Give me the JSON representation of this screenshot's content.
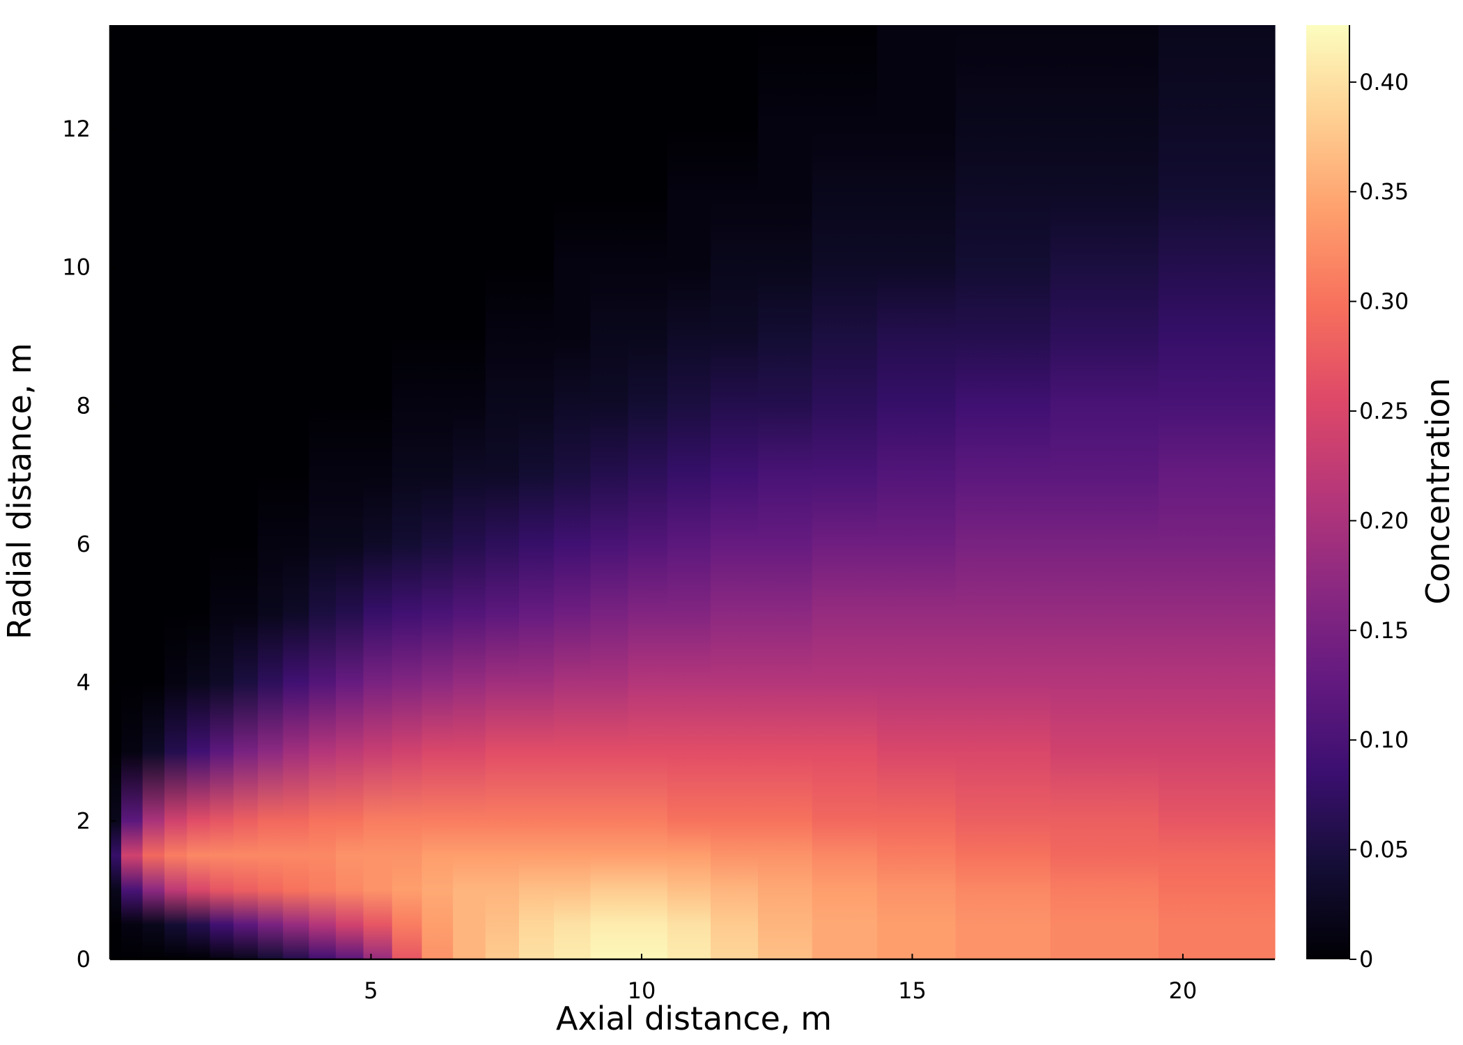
{
  "chart_data": {
    "type": "heatmap",
    "title": "",
    "xlabel": "Axial distance, m",
    "ylabel": "Radial distance, m",
    "colorbar_label": "Concentration",
    "colormap": "magma",
    "xlim": [
      0.18,
      21.7
    ],
    "ylim": [
      0,
      13.5
    ],
    "clim": [
      0,
      0.426
    ],
    "xticks": [
      5,
      10,
      15,
      20
    ],
    "xtick_labels": [
      "5",
      "10",
      "15",
      "20"
    ],
    "yticks": [
      0,
      2,
      4,
      6,
      8,
      10,
      12
    ],
    "ytick_labels": [
      "0",
      "2",
      "4",
      "6",
      "8",
      "10",
      "12"
    ],
    "cticks": [
      0,
      0.05,
      0.1,
      0.15,
      0.2,
      0.25,
      0.3,
      0.35,
      0.4
    ],
    "ctick_labels": [
      "0",
      "0.05",
      "0.10",
      "0.15",
      "0.20",
      "0.25",
      "0.30",
      "0.35",
      "0.40"
    ],
    "grid": false,
    "x_columns_m": [
      0.19,
      0.58,
      0.98,
      1.39,
      1.81,
      2.24,
      2.68,
      3.14,
      3.61,
      4.1,
      4.6,
      5.12,
      5.66,
      6.22,
      6.81,
      7.42,
      8.05,
      8.71,
      9.4,
      10.1,
      10.85,
      11.7,
      12.6,
      13.7,
      15.0,
      16.6,
      18.5,
      20.6
    ],
    "radial_profile_m": [
      0,
      0.5,
      1.0,
      1.5,
      2.0,
      3.0,
      4.0,
      5.0,
      6.0,
      7.0,
      8.0,
      9.0,
      10.0,
      11.0,
      12.0,
      13.5
    ],
    "concentration": [
      [
        0.0,
        0.0,
        0.02,
        0.08,
        0.02,
        0.0,
        0.0,
        0.0,
        0.0,
        0.0,
        0.0,
        0.0,
        0.0,
        0.0,
        0.0,
        0.0
      ],
      [
        0.0,
        0.01,
        0.1,
        0.24,
        0.12,
        0.01,
        0.0,
        0.0,
        0.0,
        0.0,
        0.0,
        0.0,
        0.0,
        0.0,
        0.0,
        0.0
      ],
      [
        0.0,
        0.02,
        0.17,
        0.29,
        0.2,
        0.03,
        0.0,
        0.0,
        0.0,
        0.0,
        0.0,
        0.0,
        0.0,
        0.0,
        0.0,
        0.0
      ],
      [
        0.0,
        0.04,
        0.22,
        0.31,
        0.24,
        0.06,
        0.01,
        0.0,
        0.0,
        0.0,
        0.0,
        0.0,
        0.0,
        0.0,
        0.0,
        0.0
      ],
      [
        0.0,
        0.06,
        0.25,
        0.32,
        0.26,
        0.09,
        0.02,
        0.0,
        0.0,
        0.0,
        0.0,
        0.0,
        0.0,
        0.0,
        0.0,
        0.0
      ],
      [
        0.01,
        0.09,
        0.27,
        0.32,
        0.27,
        0.12,
        0.03,
        0.01,
        0.0,
        0.0,
        0.0,
        0.0,
        0.0,
        0.0,
        0.0,
        0.0
      ],
      [
        0.02,
        0.12,
        0.28,
        0.32,
        0.28,
        0.15,
        0.05,
        0.01,
        0.0,
        0.0,
        0.0,
        0.0,
        0.0,
        0.0,
        0.0,
        0.0
      ],
      [
        0.04,
        0.15,
        0.29,
        0.32,
        0.29,
        0.17,
        0.07,
        0.02,
        0.01,
        0.0,
        0.0,
        0.0,
        0.0,
        0.0,
        0.0,
        0.0
      ],
      [
        0.06,
        0.18,
        0.3,
        0.32,
        0.29,
        0.19,
        0.09,
        0.03,
        0.01,
        0.0,
        0.0,
        0.0,
        0.0,
        0.0,
        0.0,
        0.0
      ],
      [
        0.09,
        0.21,
        0.31,
        0.32,
        0.3,
        0.21,
        0.11,
        0.05,
        0.02,
        0.01,
        0.0,
        0.0,
        0.0,
        0.0,
        0.0,
        0.0
      ],
      [
        0.12,
        0.24,
        0.32,
        0.33,
        0.3,
        0.22,
        0.13,
        0.06,
        0.02,
        0.01,
        0.0,
        0.0,
        0.0,
        0.0,
        0.0,
        0.0
      ],
      [
        0.18,
        0.27,
        0.33,
        0.33,
        0.31,
        0.23,
        0.15,
        0.08,
        0.03,
        0.01,
        0.0,
        0.0,
        0.0,
        0.0,
        0.0,
        0.0
      ],
      [
        0.27,
        0.31,
        0.34,
        0.33,
        0.31,
        0.24,
        0.16,
        0.09,
        0.04,
        0.02,
        0.01,
        0.0,
        0.0,
        0.0,
        0.0,
        0.0
      ],
      [
        0.33,
        0.34,
        0.35,
        0.34,
        0.31,
        0.25,
        0.17,
        0.1,
        0.05,
        0.02,
        0.01,
        0.0,
        0.0,
        0.0,
        0.0,
        0.0
      ],
      [
        0.36,
        0.36,
        0.36,
        0.34,
        0.31,
        0.25,
        0.18,
        0.11,
        0.06,
        0.03,
        0.01,
        0.0,
        0.0,
        0.0,
        0.0,
        0.0
      ],
      [
        0.38,
        0.37,
        0.36,
        0.34,
        0.31,
        0.26,
        0.19,
        0.12,
        0.07,
        0.03,
        0.02,
        0.01,
        0.0,
        0.0,
        0.0,
        0.0
      ],
      [
        0.4,
        0.39,
        0.37,
        0.34,
        0.31,
        0.26,
        0.19,
        0.13,
        0.08,
        0.04,
        0.02,
        0.01,
        0.0,
        0.0,
        0.0,
        0.0
      ],
      [
        0.41,
        0.4,
        0.37,
        0.34,
        0.31,
        0.26,
        0.2,
        0.14,
        0.09,
        0.05,
        0.03,
        0.01,
        0.01,
        0.0,
        0.0,
        0.0
      ],
      [
        0.42,
        0.41,
        0.38,
        0.34,
        0.31,
        0.26,
        0.2,
        0.15,
        0.1,
        0.06,
        0.03,
        0.02,
        0.01,
        0.0,
        0.0,
        0.0
      ],
      [
        0.42,
        0.41,
        0.38,
        0.34,
        0.31,
        0.26,
        0.21,
        0.16,
        0.11,
        0.07,
        0.04,
        0.02,
        0.01,
        0.0,
        0.0,
        0.0
      ],
      [
        0.41,
        0.4,
        0.37,
        0.34,
        0.3,
        0.26,
        0.21,
        0.16,
        0.12,
        0.08,
        0.05,
        0.03,
        0.01,
        0.01,
        0.0,
        0.0
      ],
      [
        0.39,
        0.38,
        0.36,
        0.33,
        0.3,
        0.26,
        0.21,
        0.17,
        0.13,
        0.09,
        0.06,
        0.03,
        0.02,
        0.01,
        0.0,
        0.0
      ],
      [
        0.37,
        0.36,
        0.35,
        0.33,
        0.3,
        0.26,
        0.21,
        0.17,
        0.13,
        0.1,
        0.06,
        0.04,
        0.02,
        0.01,
        0.01,
        0.0
      ],
      [
        0.35,
        0.35,
        0.34,
        0.32,
        0.29,
        0.26,
        0.21,
        0.18,
        0.14,
        0.1,
        0.07,
        0.05,
        0.03,
        0.02,
        0.01,
        0.0
      ],
      [
        0.34,
        0.34,
        0.33,
        0.31,
        0.29,
        0.25,
        0.21,
        0.18,
        0.14,
        0.11,
        0.08,
        0.06,
        0.03,
        0.02,
        0.01,
        0.01
      ],
      [
        0.33,
        0.33,
        0.32,
        0.3,
        0.28,
        0.25,
        0.21,
        0.18,
        0.15,
        0.12,
        0.09,
        0.06,
        0.04,
        0.03,
        0.02,
        0.01
      ],
      [
        0.32,
        0.32,
        0.31,
        0.29,
        0.28,
        0.24,
        0.21,
        0.18,
        0.15,
        0.12,
        0.1,
        0.07,
        0.05,
        0.03,
        0.02,
        0.01
      ],
      [
        0.31,
        0.31,
        0.3,
        0.29,
        0.27,
        0.24,
        0.21,
        0.18,
        0.15,
        0.13,
        0.1,
        0.08,
        0.06,
        0.04,
        0.03,
        0.02
      ]
    ]
  }
}
